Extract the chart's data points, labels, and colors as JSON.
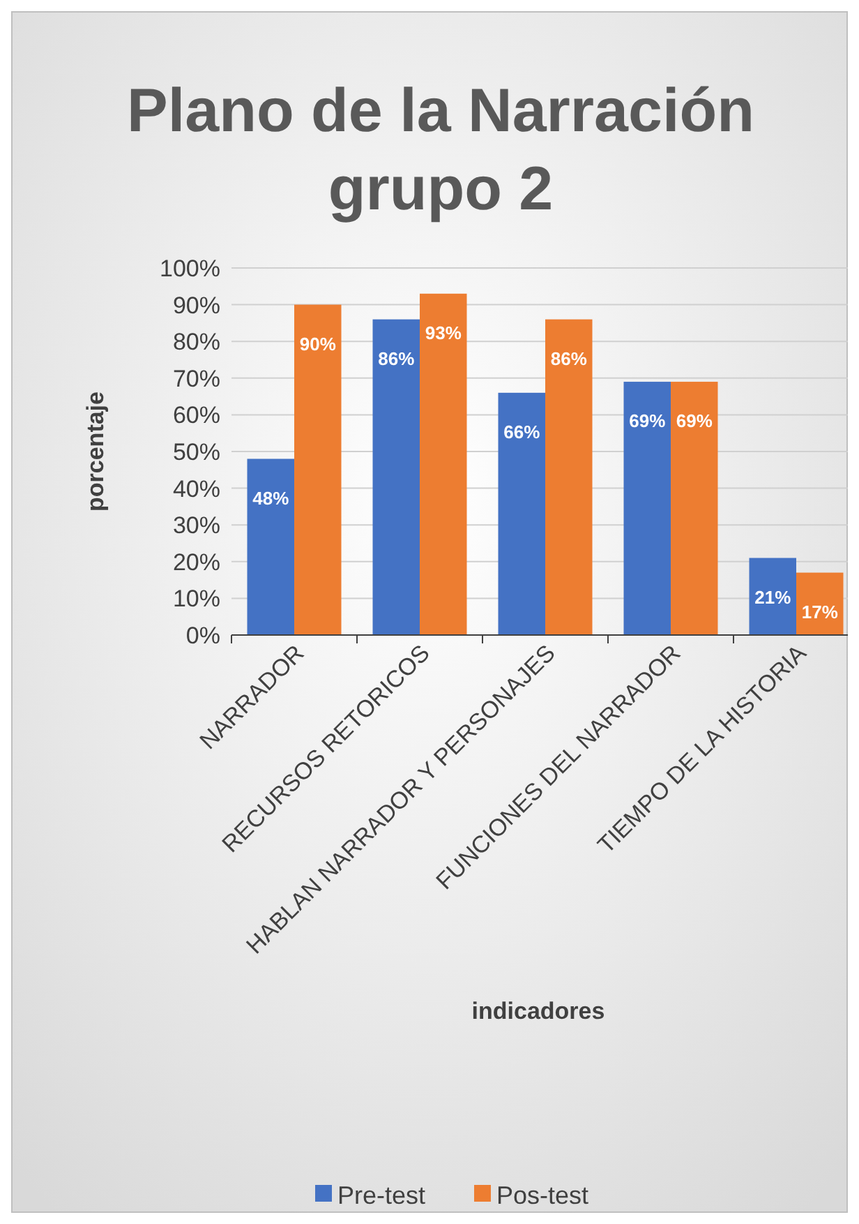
{
  "chart_data": {
    "type": "bar",
    "title": "Plano de la Narración grupo 2",
    "xlabel": "indicadores",
    "ylabel": "porcentaje",
    "categories": [
      "NARRADOR",
      "RECURSOS RETORICOS",
      "HABLAN NARRADOR Y PERSONAJES",
      "FUNCIONES DEL NARRADOR",
      "TIEMPO DE LA HISTORIA"
    ],
    "series": [
      {
        "name": "Pre-test",
        "color": "#4472c4",
        "values": [
          48,
          86,
          66,
          69,
          21
        ],
        "value_labels": [
          "48%",
          "86%",
          "66%",
          "69%",
          "21%"
        ]
      },
      {
        "name": "Pos-test",
        "color": "#ed7d31",
        "values": [
          90,
          93,
          86,
          69,
          17
        ],
        "value_labels": [
          "90%",
          "93%",
          "86%",
          "69%",
          "17%"
        ]
      }
    ],
    "ylim": [
      0,
      100
    ],
    "yticks": [
      {
        "value": 0,
        "label": "0%"
      },
      {
        "value": 10,
        "label": "10%"
      },
      {
        "value": 20,
        "label": "20%"
      },
      {
        "value": 30,
        "label": "30%"
      },
      {
        "value": 40,
        "label": "40%"
      },
      {
        "value": 50,
        "label": "50%"
      },
      {
        "value": 60,
        "label": "60%"
      },
      {
        "value": 70,
        "label": "70%"
      },
      {
        "value": 80,
        "label": "80%"
      },
      {
        "value": 90,
        "label": "90%"
      },
      {
        "value": 100,
        "label": "100%"
      }
    ],
    "grid": "y",
    "legend": "bottom"
  }
}
